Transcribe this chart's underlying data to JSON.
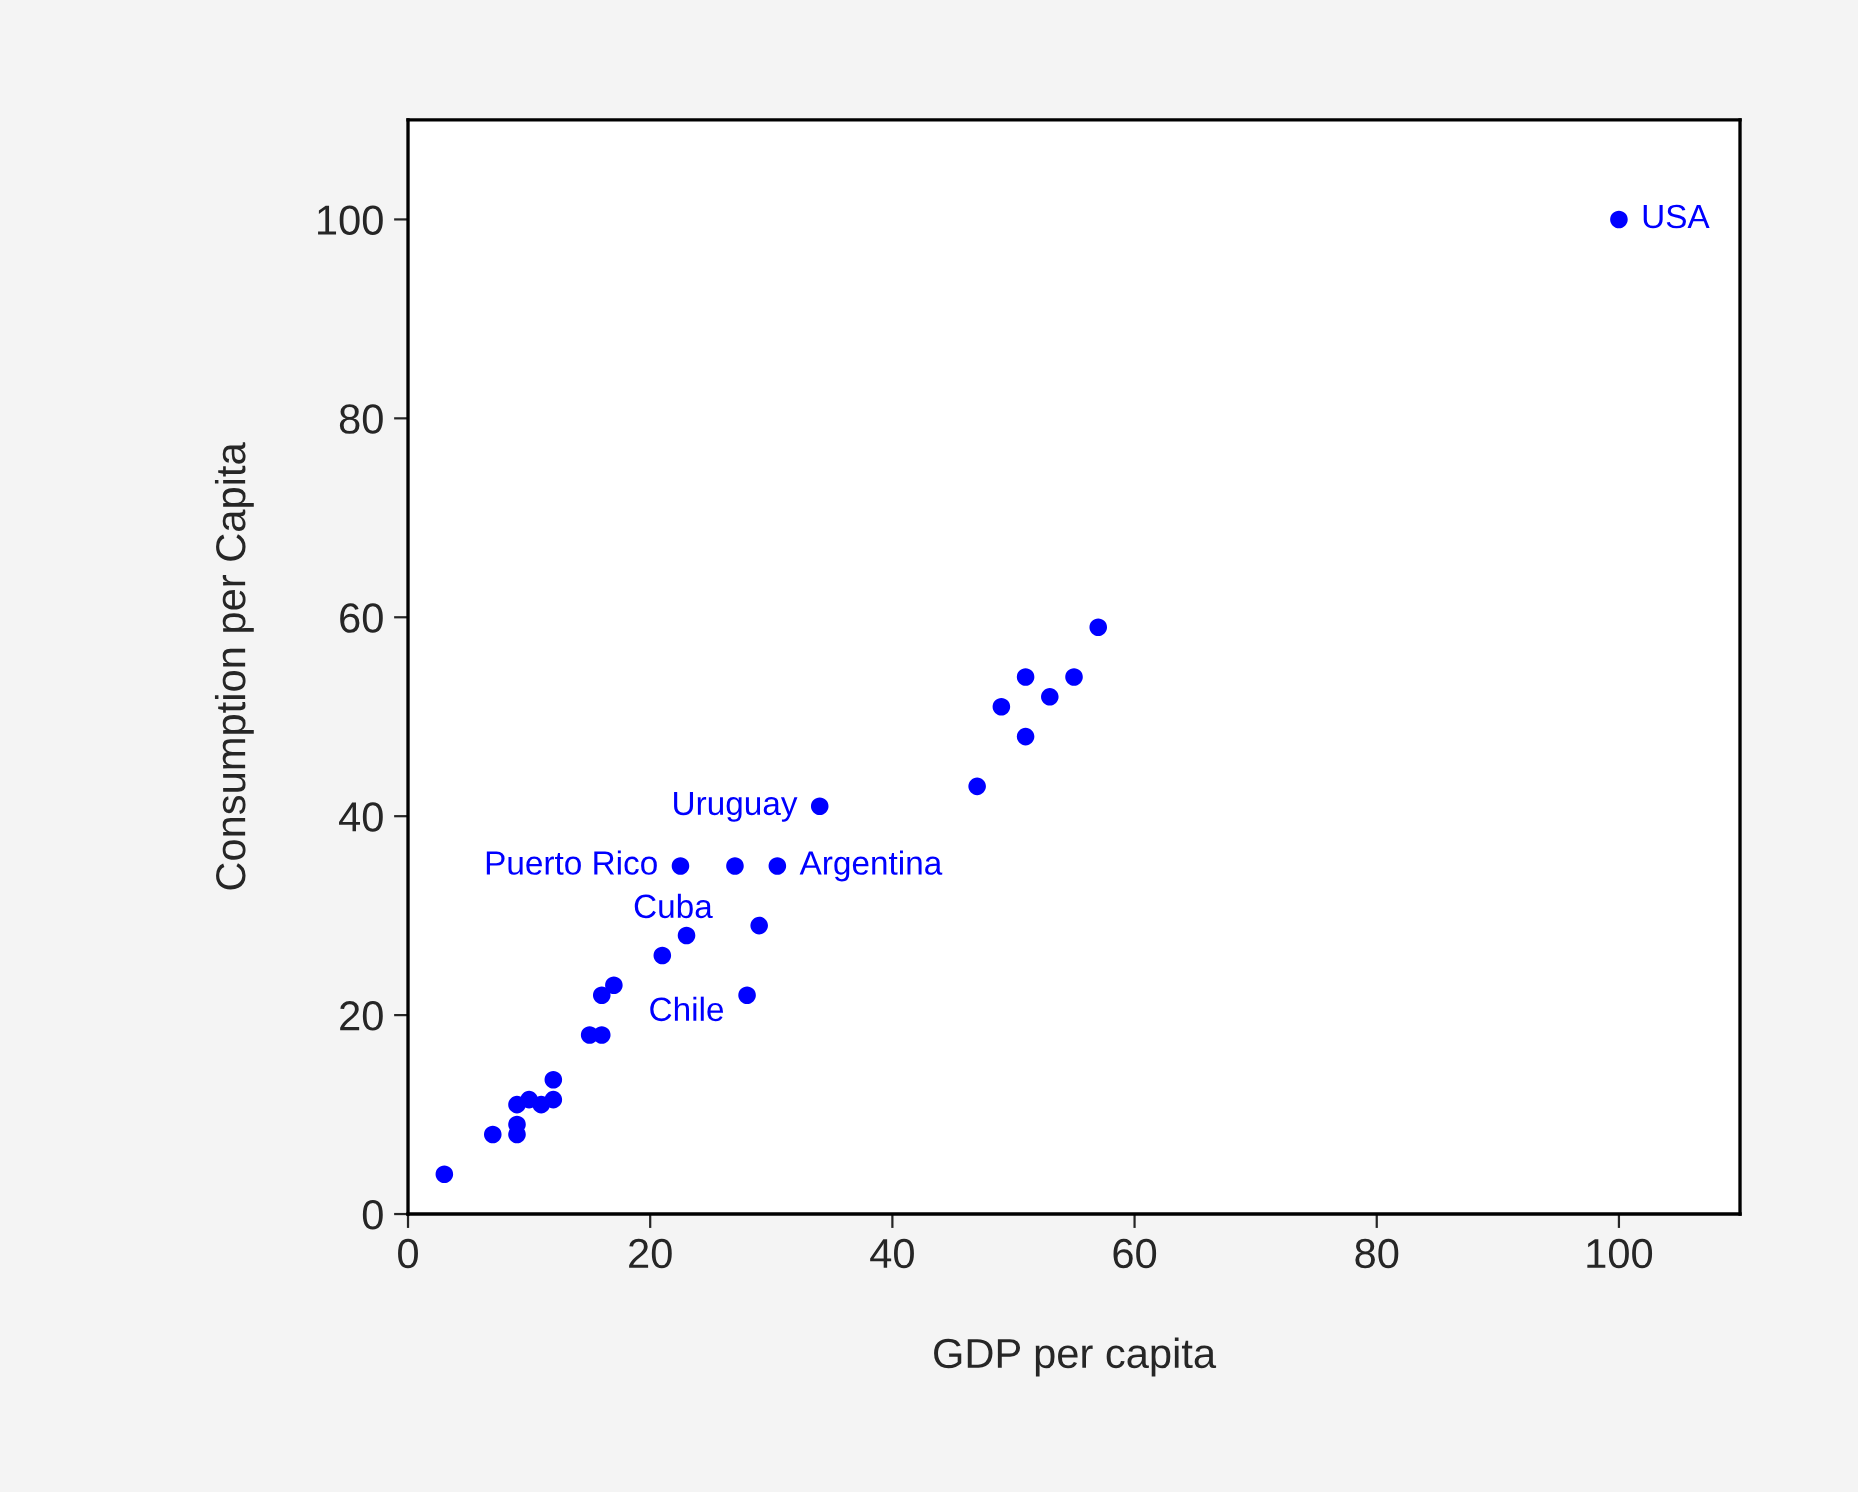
{
  "chart_data": {
    "type": "scatter",
    "xlabel": "GDP per capita",
    "ylabel": "Consumption per Capita",
    "x": [
      3,
      7,
      9,
      9,
      9,
      10,
      11,
      12,
      12,
      15,
      16,
      16,
      17,
      21,
      23,
      22.5,
      27,
      30.5,
      29,
      28,
      34,
      47,
      49,
      51,
      51,
      53,
      55,
      57,
      100
    ],
    "series": [
      {
        "color": "#0000ff",
        "values": [
          4,
          8,
          8,
          9,
          11,
          11.5,
          11,
          11.5,
          13.5,
          18,
          18,
          22,
          23,
          26,
          28,
          35,
          35,
          35,
          29,
          22,
          41,
          43,
          51,
          54,
          48,
          52,
          54,
          59,
          100
        ]
      }
    ],
    "annotations": [
      {
        "text": "USA",
        "x": 100,
        "y": 100
      },
      {
        "text": "Uruguay",
        "x": 34,
        "y": 41
      },
      {
        "text": "Puerto Rico",
        "x": 22.5,
        "y": 35
      },
      {
        "text": "Cuba",
        "x": 27,
        "y": 35
      },
      {
        "text": "Argentina",
        "x": 30.5,
        "y": 35
      },
      {
        "text": "Chile",
        "x": 23,
        "y": 28
      }
    ],
    "xlim": [
      0,
      110
    ],
    "ylim": [
      0,
      110
    ],
    "xticks": [
      0,
      20,
      40,
      60,
      80,
      100
    ],
    "yticks": [
      0,
      20,
      40,
      60,
      80,
      100
    ],
    "marker": "circle",
    "grid": false,
    "legend": false
  }
}
